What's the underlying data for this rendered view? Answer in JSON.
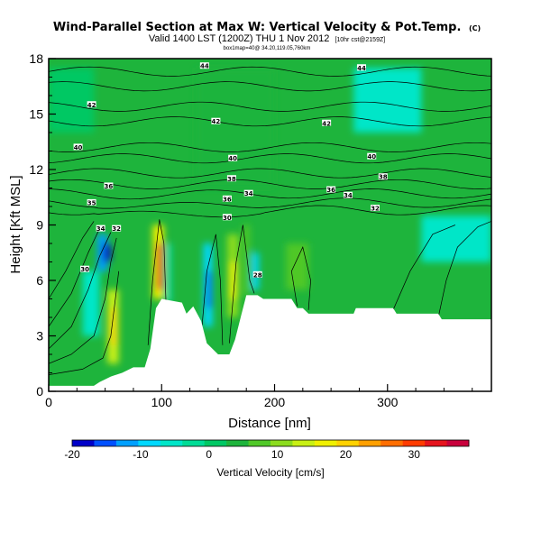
{
  "header": {
    "title": "Wind-Parallel Section at Max W: Vertical Velocity & Pot.Temp.",
    "copyright": "(C)",
    "valid_line": "Valid 1400 LST (1200Z) THU 1 Nov 2012",
    "valid_suffix": "[10hr cst@2159Z]",
    "sub_line": "box1map=40@ 34.20,119.05,760km"
  },
  "chart_data": {
    "type": "heatmap",
    "title": "Wind-Parallel Section at Max W: Vertical Velocity & Pot.Temp.",
    "xlabel": "Distance [nm]",
    "ylabel": "Height [Kft MSL]",
    "xlim": [
      0,
      392
    ],
    "ylim": [
      0,
      18
    ],
    "x_ticks": [
      0,
      100,
      200,
      300
    ],
    "y_ticks": [
      0,
      3,
      6,
      9,
      12,
      15,
      18
    ],
    "x_tick_labels": [
      "0",
      "100",
      "200",
      "300"
    ],
    "y_tick_labels": [
      "0",
      "3",
      "6",
      "9",
      "12",
      "15",
      "18"
    ],
    "colorbar": {
      "label": "Vertical Velocity [cm/s]",
      "min": -20,
      "max": 38,
      "tick_values": [
        -20,
        -10,
        0,
        10,
        20,
        30
      ],
      "tick_labels": [
        "-20",
        "-10",
        "0",
        "10",
        "20",
        "30"
      ],
      "colors": [
        "#0000c8",
        "#0050ff",
        "#00a0ff",
        "#00d8ff",
        "#00e6c8",
        "#00dc96",
        "#00c864",
        "#1eb43c",
        "#50c828",
        "#8cdc1e",
        "#c8f014",
        "#f0f000",
        "#ffd200",
        "#ffa000",
        "#ff6e00",
        "#ff3c00",
        "#e6141e",
        "#c8003c"
      ]
    },
    "terrain": [
      [
        0,
        0.3
      ],
      [
        40,
        0.3
      ],
      [
        45,
        0.5
      ],
      [
        55,
        0.8
      ],
      [
        65,
        1.0
      ],
      [
        75,
        1.3
      ],
      [
        85,
        1.3
      ],
      [
        90,
        2.3
      ],
      [
        95,
        4.5
      ],
      [
        100,
        5.0
      ],
      [
        118,
        4.8
      ],
      [
        122,
        4.2
      ],
      [
        128,
        4.6
      ],
      [
        135,
        3.8
      ],
      [
        140,
        2.6
      ],
      [
        150,
        2.0
      ],
      [
        160,
        2.0
      ],
      [
        165,
        2.8
      ],
      [
        170,
        4.0
      ],
      [
        175,
        5.2
      ],
      [
        185,
        5.2
      ],
      [
        190,
        5.0
      ],
      [
        215,
        5.0
      ],
      [
        220,
        4.5
      ],
      [
        225,
        4.5
      ],
      [
        230,
        4.2
      ],
      [
        270,
        4.2
      ],
      [
        272,
        4.5
      ],
      [
        305,
        4.5
      ],
      [
        308,
        4.2
      ],
      [
        345,
        4.2
      ],
      [
        348,
        3.9
      ],
      [
        392,
        3.9
      ]
    ],
    "velocity_cells": [
      {
        "x0": 43,
        "x1": 52,
        "y0": 6.5,
        "y1": 8.5,
        "w": -12
      },
      {
        "x0": 48,
        "x1": 55,
        "y0": 7,
        "y1": 8,
        "w": -18
      },
      {
        "x0": 52,
        "x1": 62,
        "y0": 1.5,
        "y1": 5.5,
        "w": 14
      },
      {
        "x0": 55,
        "x1": 60,
        "y0": 2.5,
        "y1": 4.5,
        "w": 20
      },
      {
        "x0": 92,
        "x1": 102,
        "y0": 5,
        "y1": 9,
        "w": 16
      },
      {
        "x0": 96,
        "x1": 101,
        "y0": 5.5,
        "y1": 8,
        "w": 32
      },
      {
        "x0": 104,
        "x1": 108,
        "y0": 4.8,
        "y1": 8,
        "w": -6
      },
      {
        "x0": 137,
        "x1": 145,
        "y0": 3.5,
        "y1": 8,
        "w": -10
      },
      {
        "x0": 140,
        "x1": 144,
        "y0": 4.5,
        "y1": 6.5,
        "w": -16
      },
      {
        "x0": 158,
        "x1": 168,
        "y0": 4,
        "y1": 8.5,
        "w": 12
      },
      {
        "x0": 161,
        "x1": 166,
        "y0": 5,
        "y1": 7,
        "w": 18
      },
      {
        "x0": 172,
        "x1": 178,
        "y0": 5.2,
        "y1": 9,
        "w": 8
      },
      {
        "x0": 180,
        "x1": 186,
        "y0": 5.5,
        "y1": 7.5,
        "w": -8
      },
      {
        "x0": 0,
        "x1": 40,
        "y0": 14,
        "y1": 17.5,
        "w": 2
      },
      {
        "x0": 270,
        "x1": 330,
        "y0": 14,
        "y1": 17.5,
        "w": -4
      },
      {
        "x0": 130,
        "x1": 200,
        "y0": 11,
        "y1": 17.5,
        "w": 5
      },
      {
        "x0": 330,
        "x1": 392,
        "y0": 7,
        "y1": 9.5,
        "w": -5
      },
      {
        "x0": 210,
        "x1": 230,
        "y0": 5.5,
        "y1": 8,
        "w": 6
      },
      {
        "x0": 30,
        "x1": 45,
        "y0": 3.0,
        "y1": 6.5,
        "w": -4
      }
    ],
    "theta_contours": [
      {
        "label": "44",
        "base": 17.3
      },
      {
        "label": "44",
        "base": 16.5
      },
      {
        "label": "42",
        "base": 15.4
      },
      {
        "label": "42",
        "base": 14.6
      },
      {
        "label": "40",
        "base": 13.2
      },
      {
        "label": "40",
        "base": 12.6
      },
      {
        "label": "38",
        "base": 11.8
      },
      {
        "label": "38",
        "base": 11.2
      },
      {
        "label": "36",
        "base": 10.7
      },
      {
        "label": "34",
        "base": 10.2
      },
      {
        "label": "32",
        "base": 9.8
      }
    ],
    "contour_labels": [
      {
        "x": 138,
        "y": 17.6,
        "text": "44"
      },
      {
        "x": 277,
        "y": 17.5,
        "text": "44"
      },
      {
        "x": 38,
        "y": 15.5,
        "text": "42"
      },
      {
        "x": 148,
        "y": 14.6,
        "text": "42"
      },
      {
        "x": 246,
        "y": 14.5,
        "text": "42"
      },
      {
        "x": 26,
        "y": 13.2,
        "text": "40"
      },
      {
        "x": 163,
        "y": 12.6,
        "text": "40"
      },
      {
        "x": 286,
        "y": 12.7,
        "text": "40"
      },
      {
        "x": 53,
        "y": 11.1,
        "text": "36"
      },
      {
        "x": 162,
        "y": 11.5,
        "text": "38"
      },
      {
        "x": 296,
        "y": 11.6,
        "text": "38"
      },
      {
        "x": 250,
        "y": 10.9,
        "text": "36"
      },
      {
        "x": 38,
        "y": 10.2,
        "text": "35"
      },
      {
        "x": 158,
        "y": 10.4,
        "text": "36"
      },
      {
        "x": 177,
        "y": 10.7,
        "text": "34"
      },
      {
        "x": 265,
        "y": 10.6,
        "text": "34"
      },
      {
        "x": 289,
        "y": 9.9,
        "text": "32"
      },
      {
        "x": 46,
        "y": 8.8,
        "text": "34"
      },
      {
        "x": 60,
        "y": 8.8,
        "text": "32"
      },
      {
        "x": 158,
        "y": 9.4,
        "text": "30"
      },
      {
        "x": 32,
        "y": 6.6,
        "text": "30"
      },
      {
        "x": 185,
        "y": 6.3,
        "text": "28"
      }
    ]
  }
}
